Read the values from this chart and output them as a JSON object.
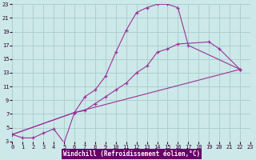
{
  "xlabel": "Windchill (Refroidissement éolien,°C)",
  "bg_color": "#cce8e8",
  "grid_color": "#aacccc",
  "line_color": "#993399",
  "xlim": [
    0,
    23
  ],
  "ylim": [
    3,
    23
  ],
  "xticks": [
    0,
    1,
    2,
    3,
    4,
    5,
    6,
    7,
    8,
    9,
    10,
    11,
    12,
    13,
    14,
    15,
    16,
    17,
    18,
    19,
    20,
    21,
    22,
    23
  ],
  "yticks": [
    3,
    5,
    7,
    9,
    11,
    13,
    15,
    17,
    19,
    21,
    23
  ],
  "line1_x": [
    0,
    1,
    2,
    3,
    4,
    5,
    6,
    7,
    8,
    9,
    10,
    11,
    12,
    13,
    14,
    15,
    16,
    17,
    22
  ],
  "line1_y": [
    4,
    3.5,
    3.5,
    4.2,
    4.8,
    2.8,
    7.2,
    9.5,
    10.5,
    12.5,
    16,
    19.2,
    21.8,
    22.5,
    23,
    23,
    22.5,
    17,
    13.5
  ],
  "line2_x": [
    0,
    6,
    7,
    8,
    9,
    10,
    11,
    12,
    13,
    14,
    15,
    16,
    19,
    20,
    22
  ],
  "line2_y": [
    4,
    7.2,
    7.5,
    8.5,
    9.5,
    10.5,
    11.5,
    13,
    14,
    16,
    16.5,
    17.2,
    17.5,
    16.5,
    13.5
  ],
  "line3_x": [
    0,
    6,
    22
  ],
  "line3_y": [
    4,
    7.2,
    13.5
  ],
  "xlabel_bg": "#660066",
  "xlabel_fg": "#ffffff",
  "tick_fontsize": 5,
  "xlabel_fontsize": 5.5
}
